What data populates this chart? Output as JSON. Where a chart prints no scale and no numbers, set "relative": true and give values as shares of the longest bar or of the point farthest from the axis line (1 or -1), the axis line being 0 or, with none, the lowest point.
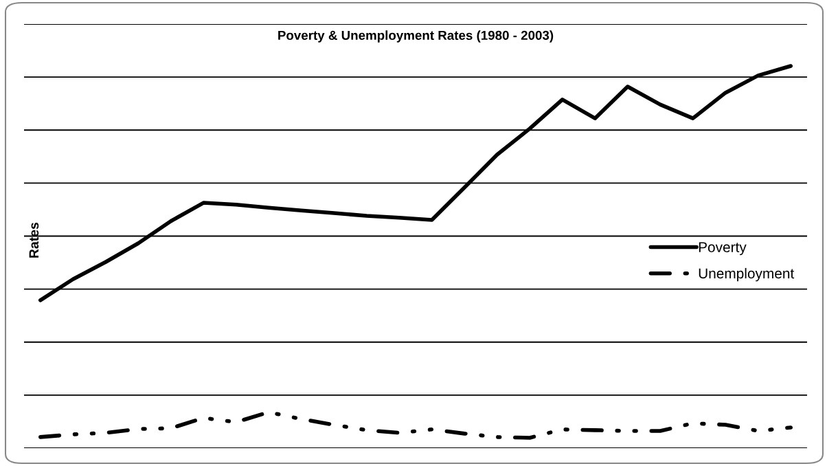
{
  "chart_data": {
    "type": "line",
    "title": "Poverty & Unemployment Rates (1980 - 2003)",
    "ylabel": "Rates",
    "categories": [
      null,
      null,
      null,
      null,
      null,
      null,
      null,
      null,
      null,
      null,
      null,
      null,
      null,
      null,
      null,
      null,
      null,
      null,
      null,
      null,
      null,
      null,
      null,
      null
    ],
    "relative": true,
    "grid": "y",
    "legend": "right",
    "marker": "none",
    "series": [
      {
        "name": "Poverty",
        "color": "#000000",
        "line_style": "solid",
        "values": [
          0.387,
          0.442,
          0.487,
          0.536,
          0.594,
          0.642,
          0.637,
          0.629,
          0.622,
          0.615,
          0.608,
          0.603,
          0.597,
          0.682,
          0.768,
          0.836,
          0.912,
          0.863,
          0.946,
          0.899,
          0.863,
          0.93,
          0.975,
          1.0
        ]
      },
      {
        "name": "Unemployment",
        "color": "#000000",
        "line_style": "dashed",
        "values": [
          0.029,
          0.036,
          0.04,
          0.05,
          0.052,
          0.079,
          0.068,
          0.094,
          0.076,
          0.061,
          0.047,
          0.04,
          0.049,
          0.038,
          0.029,
          0.027,
          0.049,
          0.047,
          0.045,
          0.045,
          0.065,
          0.061,
          0.045,
          0.054
        ]
      }
    ]
  }
}
